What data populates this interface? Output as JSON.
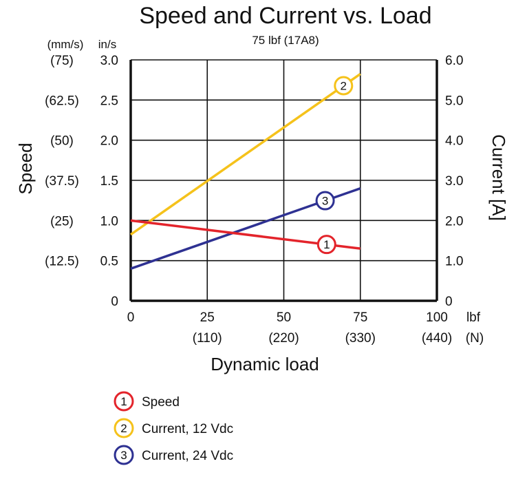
{
  "chart_data": {
    "type": "line",
    "title": "Speed and Current vs. Load",
    "subtitle": "75 lbf (17A8)",
    "xlabel": "Dynamic load",
    "x_unit_primary": "lbf",
    "x_unit_secondary": "(N)",
    "xlim": [
      0,
      100
    ],
    "x_ticks": [
      "0",
      "25",
      "50",
      "75",
      "100"
    ],
    "x_ticks_secondary": [
      "",
      "(110)",
      "(220)",
      "(330)",
      "(440)"
    ],
    "y_left_label": "Speed",
    "y_left_unit_primary": "in/s",
    "y_left_unit_secondary": "(mm/s)",
    "y_left_lim": [
      0,
      3.0
    ],
    "y_left_ticks": [
      "0",
      "0.5",
      "1.0",
      "1.5",
      "2.0",
      "2.5",
      "3.0"
    ],
    "y_left_ticks_secondary": [
      "",
      "(12.5)",
      "(25)",
      "(37.5)",
      "(50)",
      "(62.5)",
      "(75)"
    ],
    "y_right_label": "Current [A]",
    "y_right_lim": [
      0,
      6.0
    ],
    "y_right_ticks": [
      "0",
      "1.0",
      "2.0",
      "3.0",
      "4.0",
      "5.0",
      "6.0"
    ],
    "grid": true,
    "legend_position": "bottom-left",
    "series": [
      {
        "marker": "1",
        "name": "Speed",
        "axis": "left",
        "color": "#e3242b",
        "x": [
          0,
          75
        ],
        "y": [
          1.0,
          0.65
        ],
        "marker_x": 64
      },
      {
        "marker": "2",
        "name": "Current, 12 Vdc",
        "axis": "right",
        "color": "#f5c21b",
        "x": [
          0,
          75
        ],
        "y": [
          1.65,
          5.65
        ],
        "marker_x": 69.5
      },
      {
        "marker": "3",
        "name": "Current, 24 Vdc",
        "axis": "right",
        "color": "#2e3192",
        "x": [
          0,
          75
        ],
        "y": [
          0.8,
          2.8
        ],
        "marker_x": 63.5
      }
    ]
  }
}
